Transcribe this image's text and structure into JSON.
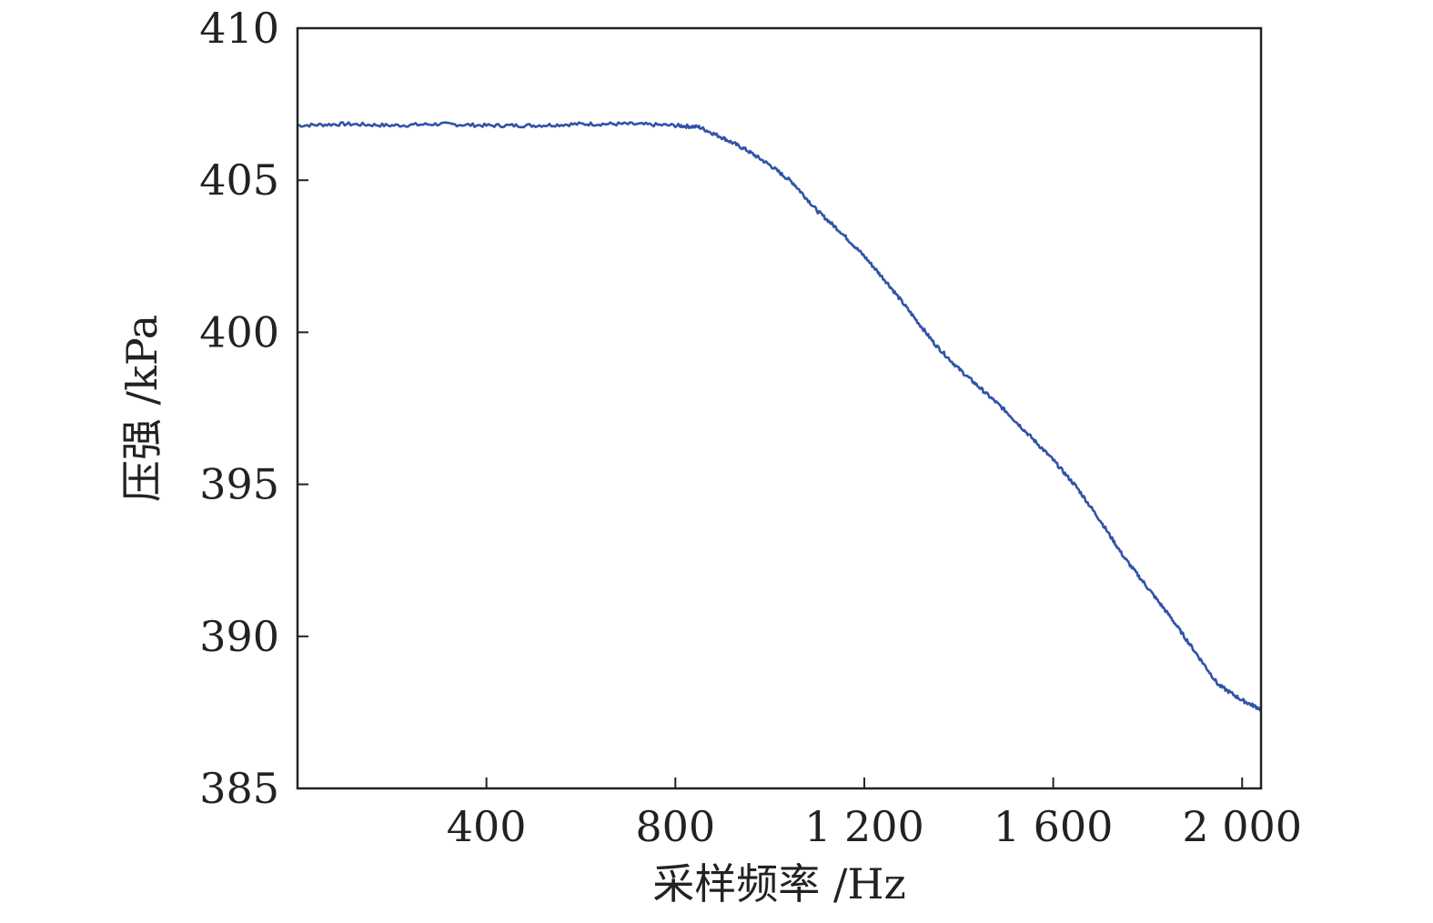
{
  "chart_data": {
    "type": "line",
    "title": "",
    "xlabel": "采样频率 /Hz",
    "ylabel": "压强 /kPa",
    "xlim": [
      0,
      2040
    ],
    "ylim": [
      385,
      410
    ],
    "xticks": [
      400,
      800,
      1200,
      1600,
      2000
    ],
    "xtick_labels": [
      "400",
      "800",
      "1 200",
      "1 600",
      "2 000"
    ],
    "yticks": [
      385,
      390,
      395,
      400,
      405,
      410
    ],
    "ytick_labels": [
      "385",
      "390",
      "395",
      "400",
      "405",
      "410"
    ],
    "grid": false,
    "legend": "none",
    "series": [
      {
        "color": "#3153a8",
        "x": [
          0,
          100,
          200,
          300,
          400,
          500,
          600,
          700,
          800,
          850,
          900,
          950,
          1000,
          1050,
          1100,
          1150,
          1200,
          1250,
          1300,
          1350,
          1400,
          1450,
          1500,
          1550,
          1600,
          1650,
          1700,
          1750,
          1800,
          1850,
          1900,
          1950,
          2000,
          2040
        ],
        "values": [
          406.8,
          406.85,
          406.8,
          406.85,
          406.8,
          406.8,
          406.85,
          406.85,
          406.8,
          406.75,
          406.4,
          406.0,
          405.5,
          404.9,
          404.0,
          403.3,
          402.5,
          401.6,
          400.6,
          399.6,
          398.8,
          398.1,
          397.4,
          396.6,
          395.8,
          394.9,
          393.8,
          392.6,
          391.6,
          390.6,
          389.5,
          388.4,
          387.9,
          387.6
        ]
      }
    ]
  }
}
